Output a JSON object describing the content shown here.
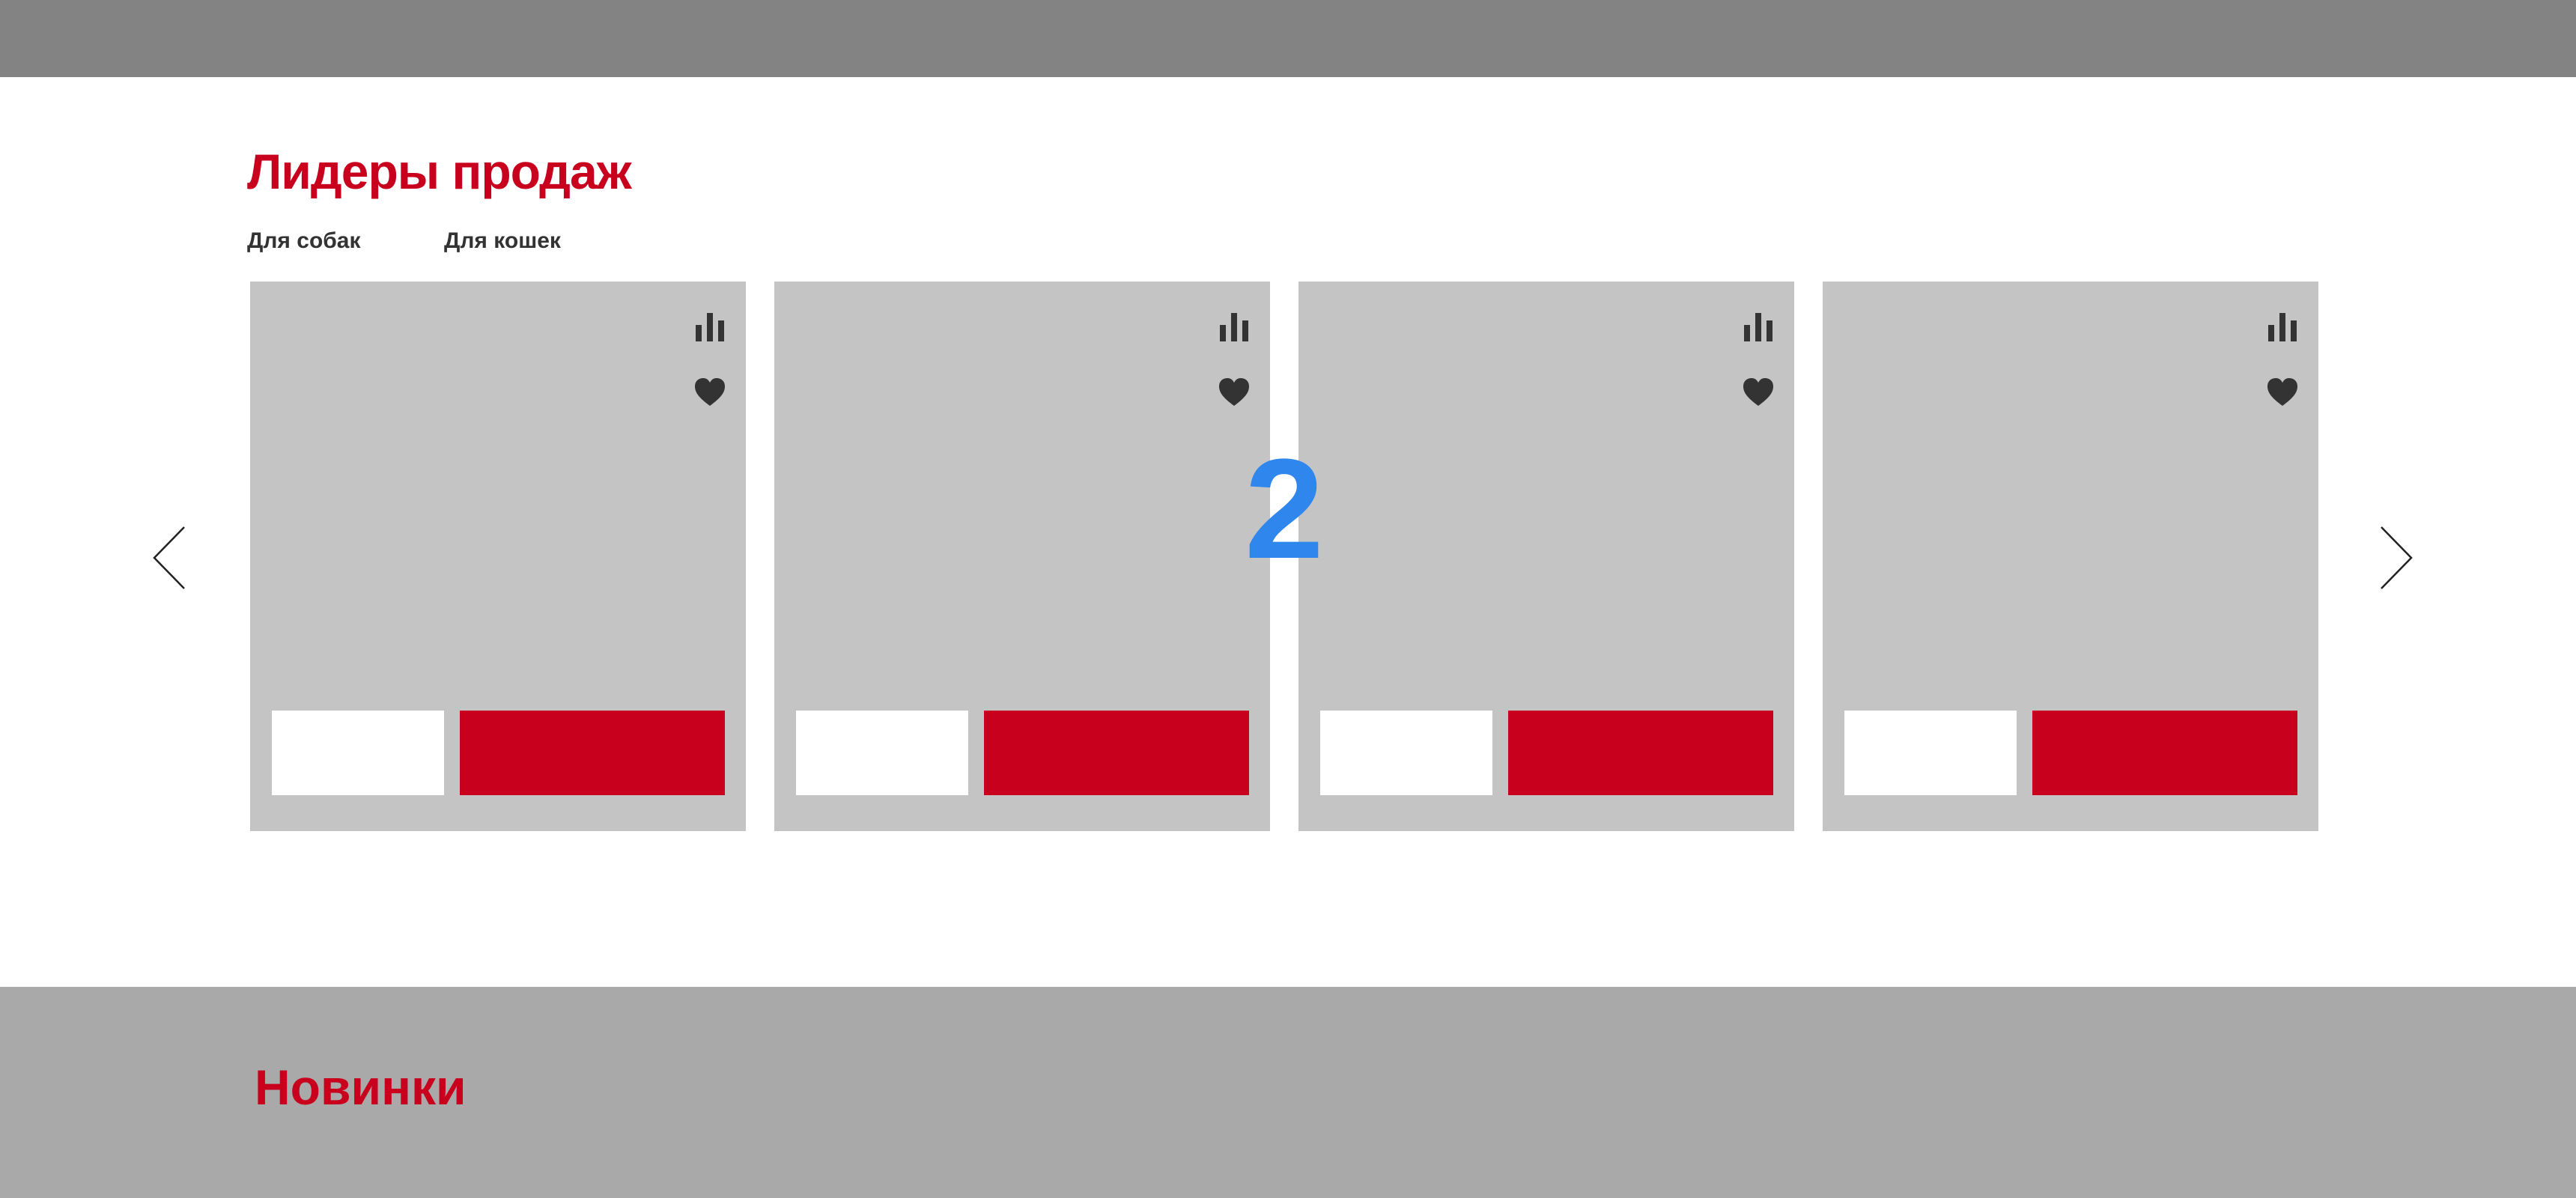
{
  "colors": {
    "accent": "#c8001e",
    "card_bg": "#c4c4c4",
    "header_bg": "#838383",
    "footer_bg": "#a9a9a9",
    "indicator": "#2f86ec"
  },
  "bestsellers": {
    "title": "Лидеры продаж",
    "tabs": [
      {
        "label": "Для собак"
      },
      {
        "label": "Для кошек"
      }
    ],
    "cards": [
      {
        "compare_icon": "bar-chart-icon",
        "favorite_icon": "heart-icon"
      },
      {
        "compare_icon": "bar-chart-icon",
        "favorite_icon": "heart-icon"
      },
      {
        "compare_icon": "bar-chart-icon",
        "favorite_icon": "heart-icon"
      },
      {
        "compare_icon": "bar-chart-icon",
        "favorite_icon": "heart-icon"
      }
    ],
    "prev_icon": "chevron-left-icon",
    "next_icon": "chevron-right-icon",
    "page_indicator": "2"
  },
  "new_arrivals": {
    "title": "Новинки"
  }
}
